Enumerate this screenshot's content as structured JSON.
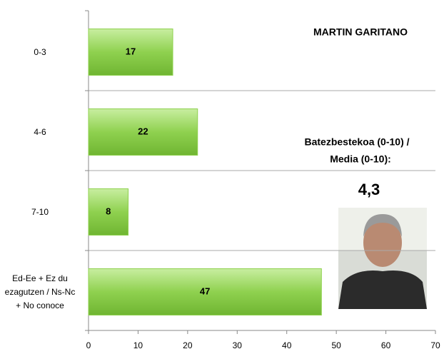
{
  "chart_data": {
    "type": "hbar",
    "title": "MARTIN GARITANO",
    "categories": [
      "0-3",
      "4-6",
      "7-10",
      "Ed-Ee + Ez du ezagutzen / Ns-Nc + No conoce"
    ],
    "values": [
      17,
      22,
      8,
      47
    ],
    "color": "#8fd14f",
    "xlim": [
      0,
      70
    ],
    "xticks": [
      0,
      10,
      20,
      30,
      40,
      50,
      60,
      70
    ],
    "annotation": [
      "Batezbestekoa (0-10) /",
      "Media (0-10):"
    ],
    "average": "4,3"
  }
}
